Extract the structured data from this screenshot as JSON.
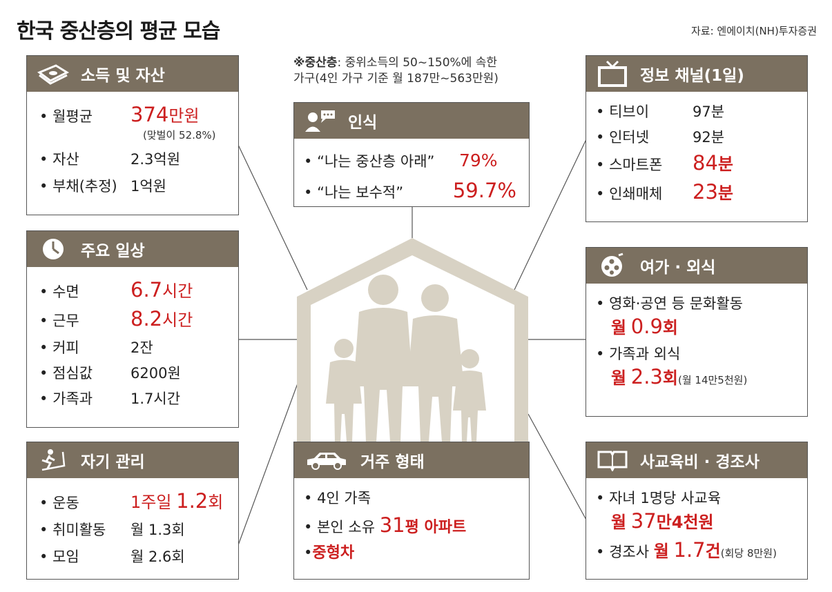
{
  "title": "한국 중산층의 평균 모습",
  "source": "자료: 엔에이치(NH)투자증권",
  "definition": {
    "bold": "※중산층",
    "line1_rest": ": 중위소득의 50~150%에 속한",
    "line2": "가구(4인 가구 기준 월 187만~563만원)"
  },
  "income": {
    "header": "소득 및 자산",
    "monthly_label": "월평균",
    "monthly_num": "374",
    "monthly_unit": "만원",
    "dual_income_note": "(맞벌이 52.8%)",
    "asset_label": "자산",
    "asset_value": "2.3억원",
    "debt_label": "부채(추정)",
    "debt_value": "1억원"
  },
  "daily": {
    "header": "주요 일상",
    "sleep_label": "수면",
    "sleep_num": "6.7",
    "sleep_unit": "시간",
    "work_label": "근무",
    "work_num": "8.2",
    "work_unit": "시간",
    "coffee_label": "커피",
    "coffee_value": "2잔",
    "lunch_label": "점심값",
    "lunch_value": "6200원",
    "family_label": "가족과",
    "family_value": "1.7시간"
  },
  "self_care": {
    "header": "자기 관리",
    "exercise_label": "운동",
    "exercise_prefix": "1주일",
    "exercise_num": "1.2",
    "exercise_unit": "회",
    "hobby_label": "취미활동",
    "hobby_value": "월 1.3회",
    "meeting_label": "모임",
    "meeting_value": "월 2.6회"
  },
  "perception": {
    "header": "인식",
    "q1": "“나는 중산층 아래”",
    "q1_value": "79%",
    "q2": "“나는 보수적”",
    "q2_value": "59.7%"
  },
  "housing": {
    "header": "거주 형태",
    "item1": "4인 가족",
    "item2_prefix": "본인 소유",
    "item2_num": "31",
    "item2_unit": "평 아파트",
    "item3": "중형차"
  },
  "media": {
    "header": "정보 채널(1일)",
    "tv_label": "티브이",
    "tv_value": "97분",
    "internet_label": "인터넷",
    "internet_value": "92분",
    "smartphone_label": "스마트폰",
    "smartphone_num": "84",
    "smartphone_unit": "분",
    "print_label": "인쇄매체",
    "print_num": "23",
    "print_unit": "분"
  },
  "leisure": {
    "header": "여가 · 외식",
    "culture_label": "영화·공연 등 문화활동",
    "culture_prefix": "월",
    "culture_num": "0.9",
    "culture_unit": "회",
    "dining_label": "가족과 외식",
    "dining_prefix": "월",
    "dining_num": "2.3",
    "dining_unit": "회",
    "dining_note": "(월 14만5천원)"
  },
  "education": {
    "header": "사교육비 · 경조사",
    "tutoring_label": "자녀 1명당 사교육",
    "tutoring_prefix": "월",
    "tutoring_num": "37",
    "tutoring_unit": "만4천원",
    "events_label": "경조사",
    "events_prefix": "월",
    "events_num": "1.7",
    "events_unit": "건",
    "events_note": "(회당 8만원)"
  },
  "colors": {
    "header_bg": "#7b7060",
    "highlight": "#cc1f1f",
    "house": "#d8d2c4"
  }
}
